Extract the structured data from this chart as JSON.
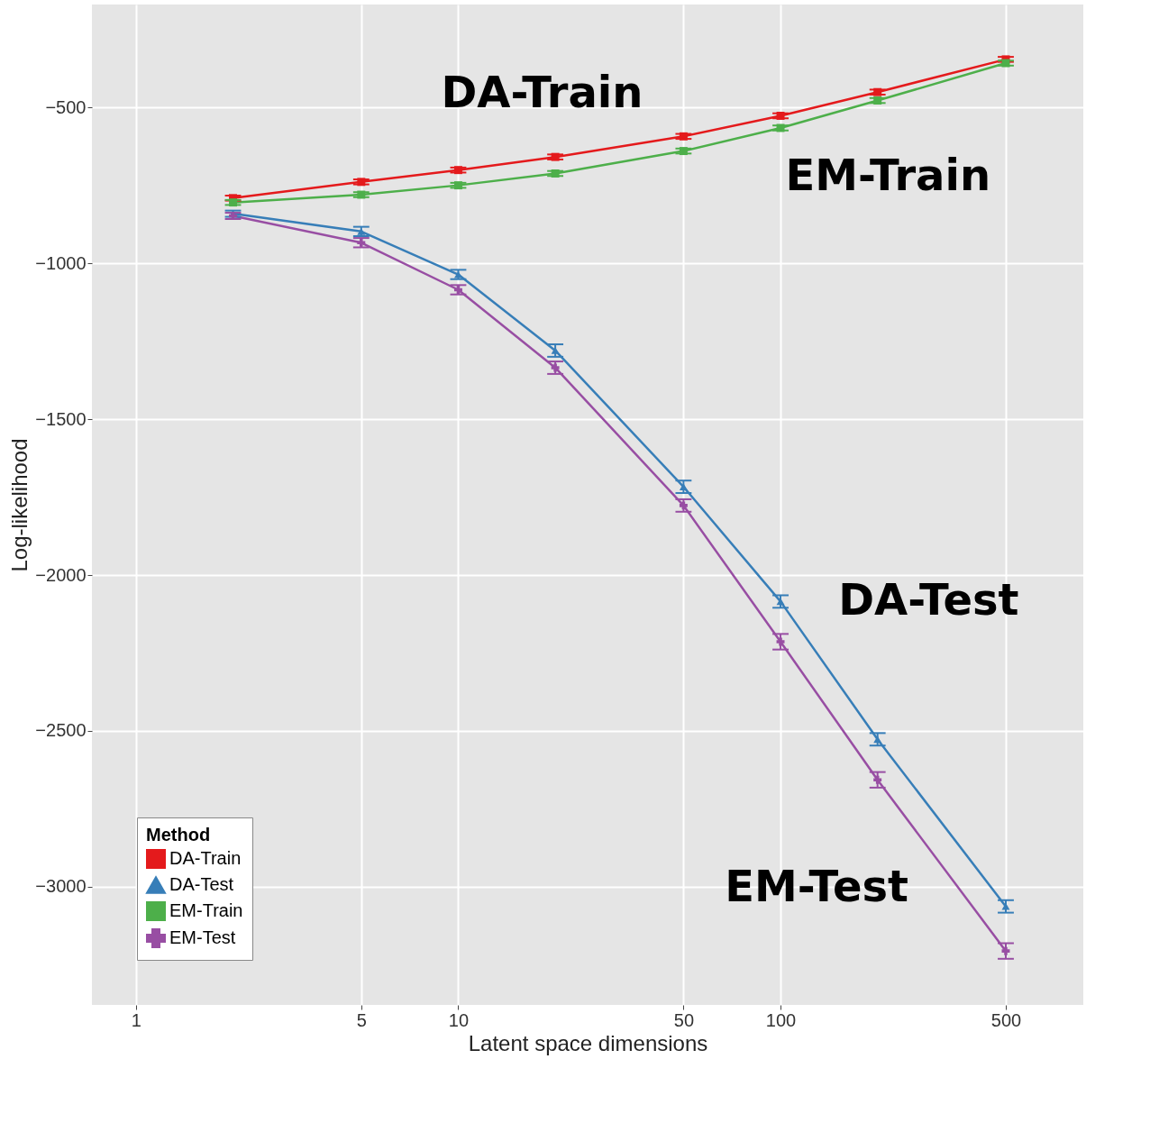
{
  "chart_data": {
    "type": "line",
    "xlabel": "Latent space dimensions",
    "ylabel": "Log-likelihood",
    "legend_title": "Method",
    "legend": "bottom left",
    "grid": true,
    "log": "x",
    "x": [
      2,
      5,
      10,
      20,
      50,
      100,
      200,
      500
    ],
    "xlim": [
      0.73,
      870
    ],
    "xticks": [
      1,
      5,
      10,
      50,
      100,
      500
    ],
    "ylim": [
      -3379,
      -170
    ],
    "yticks": [
      -500,
      -1000,
      -1500,
      -2000,
      -2500,
      -3000
    ],
    "series": [
      {
        "name": "DA-Train",
        "color": "#e41a1c",
        "marker": "square",
        "values": [
          -791,
          -739,
          -701,
          -659,
          -593,
          -527,
          -451,
          -346
        ],
        "errors": [
          8,
          8,
          8,
          8,
          8,
          8,
          8,
          8
        ]
      },
      {
        "name": "DA-Test",
        "color": "#377eb8",
        "marker": "triangle",
        "values": [
          -841,
          -898,
          -1036,
          -1280,
          -1717,
          -2085,
          -2527,
          -3063
        ],
        "errors": [
          10,
          15,
          15,
          20,
          20,
          20,
          20,
          20
        ]
      },
      {
        "name": "EM-Train",
        "color": "#4daf4a",
        "marker": "square",
        "values": [
          -805,
          -780,
          -750,
          -712,
          -640,
          -566,
          -478,
          -358
        ],
        "errors": [
          8,
          8,
          8,
          8,
          8,
          8,
          8,
          8
        ]
      },
      {
        "name": "EM-Test",
        "color": "#984ea3",
        "marker": "cross",
        "values": [
          -848,
          -934,
          -1085,
          -1335,
          -1777,
          -2214,
          -2657,
          -3206
        ],
        "errors": [
          10,
          15,
          15,
          20,
          20,
          25,
          25,
          25
        ]
      }
    ],
    "annotations": [
      "DA-Train",
      "EM-Train",
      "DA-Test",
      "EM-Test"
    ]
  }
}
